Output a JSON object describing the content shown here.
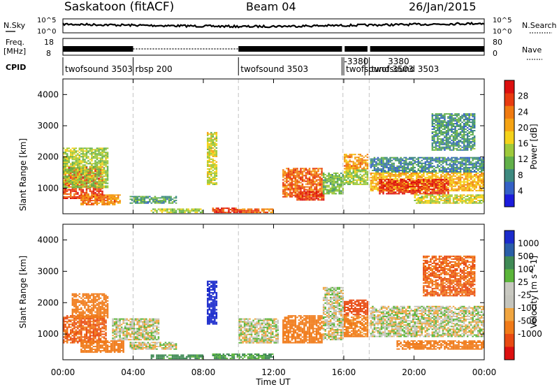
{
  "header": {
    "station": "Saskatoon (fitACF)",
    "beam": "Beam 04",
    "date": "26/Jan/2015"
  },
  "panel_labels": {
    "nsky": "N.Sky",
    "nsearch": "N.Search",
    "freq_line1": "Freq.",
    "freq_line2": "[MHz]",
    "nave": "Nave",
    "cpid": "CPID"
  },
  "noise_ticks": {
    "top": "10^5",
    "bottom": "10^0",
    "right_top": "10^5",
    "right_bottom": "10^0"
  },
  "freq_ticks": {
    "left_top": "18",
    "left_bottom": "8",
    "right_top": "80",
    "right_bottom": "0"
  },
  "cpid_segments": [
    {
      "label": "twofsound 3503",
      "start_h": 0.0,
      "end_h": 4.0
    },
    {
      "label": "rbsp 200",
      "start_h": 4.0,
      "end_h": 10.0
    },
    {
      "label": "twofsound 3503",
      "start_h": 10.0,
      "end_h": 15.9
    },
    {
      "label": "-3380",
      "start_h": 15.9,
      "end_h": 17.2
    },
    {
      "label": "3380",
      "start_h": 17.2,
      "end_h": 17.45
    },
    {
      "label": "twofsound 3503",
      "start_h": 16.0,
      "end_h": 17.4
    },
    {
      "label": "twofsound 3503",
      "start_h": 17.45,
      "end_h": 24.0
    }
  ],
  "xaxis": {
    "label": "Time UT",
    "ticks": [
      "00:00",
      "04:00",
      "08:00",
      "12:00",
      "16:00",
      "20:00",
      "00:00"
    ]
  },
  "colors": {
    "power_scale": [
      "#1b1bdc",
      "#3461c6",
      "#3e8a80",
      "#62b04a",
      "#9ec93b",
      "#f4d21a",
      "#f5a313",
      "#f07a10",
      "#e83b10",
      "#dc0f0f"
    ],
    "velocity_scale": [
      "#1b2bcc",
      "#2a5ea8",
      "#3f8a55",
      "#5bb53a",
      "#c8c8c0",
      "#c4c4bc",
      "#f0a540",
      "#f07a18",
      "#e84a12",
      "#dc1010"
    ]
  },
  "chart_data": [
    {
      "type": "heatmap",
      "name": "power",
      "ylabel": "Slant Range [km]",
      "xlabel": "",
      "x_range_hours": [
        0,
        24
      ],
      "ylim": [
        180,
        4500
      ],
      "yticks": [
        "1000",
        "2000",
        "3000",
        "4000"
      ],
      "colorbar": {
        "label": "Power [dB]",
        "min": 0,
        "max": 32,
        "ticks": [
          "4",
          "8",
          "12",
          "16",
          "20",
          "24",
          "28"
        ]
      },
      "regions": [
        {
          "t0": 0.0,
          "t1": 2.3,
          "r0": 650,
          "r1": 1700,
          "value": 27
        },
        {
          "t0": 0.0,
          "t1": 2.6,
          "r0": 1000,
          "r1": 2300,
          "value": 14
        },
        {
          "t0": 1.0,
          "t1": 3.0,
          "r0": 450,
          "r1": 800,
          "value": 24
        },
        {
          "t0": 2.5,
          "t1": 3.3,
          "r0": 500,
          "r1": 800,
          "value": 22
        },
        {
          "t0": 3.8,
          "t1": 6.5,
          "r0": 500,
          "r1": 750,
          "value": 10
        },
        {
          "t0": 5.0,
          "t1": 8.0,
          "r0": 200,
          "r1": 350,
          "value": 14
        },
        {
          "t0": 8.2,
          "t1": 8.8,
          "r0": 1100,
          "r1": 2800,
          "value": 16
        },
        {
          "t0": 8.5,
          "t1": 10.2,
          "r0": 200,
          "r1": 380,
          "value": 28
        },
        {
          "t0": 10.2,
          "t1": 12.0,
          "r0": 200,
          "r1": 350,
          "value": 24
        },
        {
          "t0": 12.5,
          "t1": 14.8,
          "r0": 700,
          "r1": 1650,
          "value": 25
        },
        {
          "t0": 13.3,
          "t1": 14.9,
          "r0": 600,
          "r1": 900,
          "value": 28
        },
        {
          "t0": 14.8,
          "t1": 16.0,
          "r0": 800,
          "r1": 1500,
          "value": 12
        },
        {
          "t0": 16.0,
          "t1": 17.4,
          "r0": 1600,
          "r1": 2100,
          "value": 22
        },
        {
          "t0": 16.0,
          "t1": 17.4,
          "r0": 1100,
          "r1": 1600,
          "value": 14
        },
        {
          "t0": 17.5,
          "t1": 24.0,
          "r0": 900,
          "r1": 1500,
          "value": 20
        },
        {
          "t0": 18.0,
          "t1": 22.0,
          "r0": 800,
          "r1": 1300,
          "value": 28
        },
        {
          "t0": 17.5,
          "t1": 24.0,
          "r0": 1500,
          "r1": 2000,
          "value": 8
        },
        {
          "t0": 20.0,
          "t1": 24.0,
          "r0": 500,
          "r1": 800,
          "value": 16
        },
        {
          "t0": 21.0,
          "t1": 23.5,
          "r0": 2200,
          "r1": 3400,
          "value": 9
        }
      ]
    },
    {
      "type": "heatmap",
      "name": "velocity",
      "ylabel": "Slant Range [km]",
      "xlabel": "Time UT",
      "x_range_hours": [
        0,
        24
      ],
      "ylim": [
        180,
        4500
      ],
      "yticks": [
        "1000",
        "2000",
        "3000",
        "4000"
      ],
      "colorbar": {
        "label": "Velocity [m s^-1]",
        "ticks": [
          "1000",
          "500",
          "100",
          "25",
          "-25",
          "-100",
          "-500",
          "-1000"
        ]
      },
      "regions": [
        {
          "t0": 0.0,
          "t1": 2.5,
          "r0": 700,
          "r1": 1600,
          "value": -300
        },
        {
          "t0": 0.5,
          "t1": 2.6,
          "r0": 1500,
          "r1": 2300,
          "value": -150
        },
        {
          "t0": 1.0,
          "t1": 3.5,
          "r0": 400,
          "r1": 800,
          "value": -200
        },
        {
          "t0": 3.8,
          "t1": 6.5,
          "r0": 500,
          "r1": 750,
          "value": 0
        },
        {
          "t0": 2.8,
          "t1": 5.5,
          "r0": 800,
          "r1": 1500,
          "value": 0
        },
        {
          "t0": 5.0,
          "t1": 8.0,
          "r0": 200,
          "r1": 350,
          "value": 80
        },
        {
          "t0": 8.2,
          "t1": 8.8,
          "r0": 1300,
          "r1": 2700,
          "value": 900
        },
        {
          "t0": 8.5,
          "t1": 12.0,
          "r0": 200,
          "r1": 380,
          "value": 60
        },
        {
          "t0": 10.0,
          "t1": 12.3,
          "r0": 700,
          "r1": 1500,
          "value": 0
        },
        {
          "t0": 12.5,
          "t1": 14.8,
          "r0": 700,
          "r1": 1600,
          "value": -250
        },
        {
          "t0": 14.8,
          "t1": 16.0,
          "r0": 800,
          "r1": 2500,
          "value": 0
        },
        {
          "t0": 16.0,
          "t1": 17.4,
          "r0": 1600,
          "r1": 2100,
          "value": -400
        },
        {
          "t0": 16.0,
          "t1": 17.4,
          "r0": 900,
          "r1": 1600,
          "value": -80
        },
        {
          "t0": 17.5,
          "t1": 24.0,
          "r0": 900,
          "r1": 1900,
          "value": 0
        },
        {
          "t0": 19.0,
          "t1": 24.0,
          "r0": 500,
          "r1": 800,
          "value": -120
        },
        {
          "t0": 20.5,
          "t1": 23.5,
          "r0": 2200,
          "r1": 3500,
          "value": -300
        }
      ]
    }
  ]
}
